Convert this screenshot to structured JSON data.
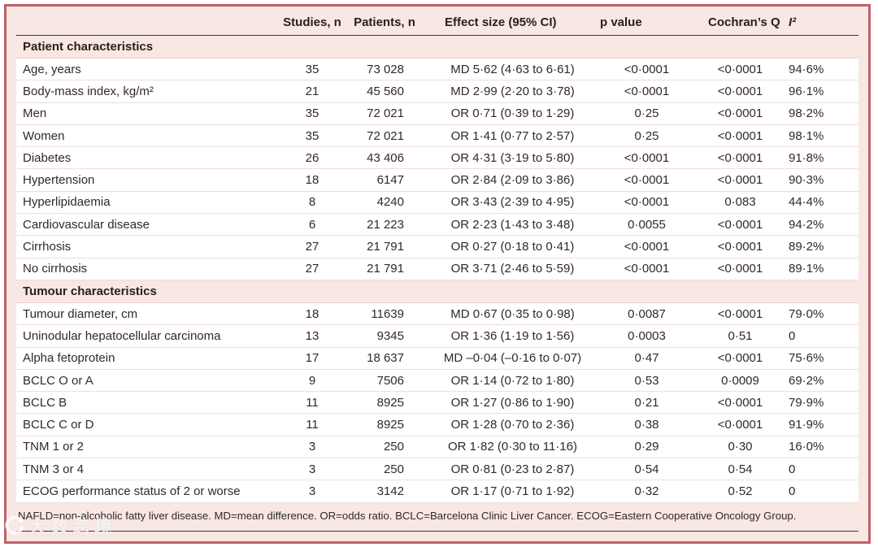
{
  "colors": {
    "frame_border": "#c0606a",
    "panel_background": "#f8e7e3",
    "row_background": "#ffffff",
    "dark_rule": "#3a3631",
    "text": "#2e2a26"
  },
  "header": {
    "columns": [
      "",
      "Studies, n",
      "Patients, n",
      "Effect size (95% CI)",
      "p value",
      "Cochran’s Q",
      "I²"
    ]
  },
  "table": {
    "rows": [
      {
        "type": "section",
        "label": "Patient characteristics"
      },
      {
        "type": "data",
        "label": "Age, years",
        "studies": "35",
        "patients": "73 028",
        "effect": "MD 5·62 (4·63 to 6·61)",
        "p": "<0·0001",
        "q": "<0·0001",
        "i2": "94·6%"
      },
      {
        "type": "data",
        "label": "Body-mass index, kg/m²",
        "studies": "21",
        "patients": "45 560",
        "effect": "MD 2·99 (2·20 to 3·78)",
        "p": "<0·0001",
        "q": "<0·0001",
        "i2": "96·1%"
      },
      {
        "type": "data",
        "label": "Men",
        "studies": "35",
        "patients": "72 021",
        "effect": "OR 0·71 (0·39 to 1·29)",
        "p": "0·25",
        "q": "<0·0001",
        "i2": "98·2%"
      },
      {
        "type": "data",
        "label": "Women",
        "studies": "35",
        "patients": "72 021",
        "effect": "OR 1·41 (0·77 to 2·57)",
        "p": "0·25",
        "q": "<0·0001",
        "i2": "98·1%"
      },
      {
        "type": "data",
        "label": "Diabetes",
        "studies": "26",
        "patients": "43 406",
        "effect": "OR 4·31 (3·19 to 5·80)",
        "p": "<0·0001",
        "q": "<0·0001",
        "i2": "91·8%"
      },
      {
        "type": "data",
        "label": "Hypertension",
        "studies": "18",
        "patients": "6147",
        "effect": "OR 2·84 (2·09 to 3·86)",
        "p": "<0·0001",
        "q": "<0·0001",
        "i2": "90·3%"
      },
      {
        "type": "data",
        "label": "Hyperlipidaemia",
        "studies": "8",
        "patients": "4240",
        "effect": "OR 3·43 (2·39 to 4·95)",
        "p": "<0·0001",
        "q": "0·083",
        "i2": "44·4%"
      },
      {
        "type": "data",
        "label": "Cardiovascular disease",
        "studies": "6",
        "patients": "21 223",
        "effect": "OR 2·23 (1·43 to 3·48)",
        "p": "0·0055",
        "q": "<0·0001",
        "i2": "94·2%"
      },
      {
        "type": "data",
        "label": "Cirrhosis",
        "studies": "27",
        "patients": "21 791",
        "effect": "OR 0·27 (0·18 to 0·41)",
        "p": "<0·0001",
        "q": "<0·0001",
        "i2": "89·2%"
      },
      {
        "type": "data",
        "label": "No cirrhosis",
        "studies": "27",
        "patients": "21 791",
        "effect": "OR 3·71 (2·46 to 5·59)",
        "p": "<0·0001",
        "q": "<0·0001",
        "i2": "89·1%"
      },
      {
        "type": "section",
        "label": "Tumour characteristics"
      },
      {
        "type": "data",
        "label": "Tumour diameter, cm",
        "studies": "18",
        "patients": "11639",
        "effect": "MD 0·67 (0·35 to 0·98)",
        "p": "0·0087",
        "q": "<0·0001",
        "i2": "79·0%"
      },
      {
        "type": "data",
        "label": "Uninodular hepatocellular carcinoma",
        "studies": "13",
        "patients": "9345",
        "effect": "OR 1·36 (1·19 to 1·56)",
        "p": "0·0003",
        "q": "0·51",
        "i2": "0"
      },
      {
        "type": "data",
        "label": "Alpha fetoprotein",
        "studies": "17",
        "patients": "18 637",
        "effect": "MD –0·04 (–0·16 to 0·07)",
        "p": "0·47",
        "q": "<0·0001",
        "i2": "75·6%"
      },
      {
        "type": "data",
        "label": "BCLC O or A",
        "studies": "9",
        "patients": "7506",
        "effect": "OR 1·14 (0·72 to 1·80)",
        "p": "0·53",
        "q": "0·0009",
        "i2": "69·2%"
      },
      {
        "type": "data",
        "label": "BCLC B",
        "studies": "11",
        "patients": "8925",
        "effect": "OR 1·27 (0·86 to 1·90)",
        "p": "0·21",
        "q": "<0·0001",
        "i2": "79·9%"
      },
      {
        "type": "data",
        "label": "BCLC C or D",
        "studies": "11",
        "patients": "8925",
        "effect": "OR 1·28 (0·70 to 2·36)",
        "p": "0·38",
        "q": "<0·0001",
        "i2": "91·9%"
      },
      {
        "type": "data",
        "label": "TNM 1 or 2",
        "studies": "3",
        "patients": "250",
        "effect": "OR 1·82 (0·30 to 11·16)",
        "p": "0·29",
        "q": "0·30",
        "i2": "16·0%"
      },
      {
        "type": "data",
        "label": "TNM 3 or 4",
        "studies": "3",
        "patients": "250",
        "effect": "OR 0·81 (0·23 to 2·87)",
        "p": "0·54",
        "q": "0·54",
        "i2": "0"
      },
      {
        "type": "data",
        "label": "ECOG performance status of 2 or worse",
        "studies": "3",
        "patients": "3142",
        "effect": "OR 1·17 (0·71 to 1·92)",
        "p": "0·32",
        "q": "0·52",
        "i2": "0"
      }
    ]
  },
  "footnote": "NAFLD=non-alcoholic fatty liver disease. MD=mean difference. OR=odds ratio. BCLC=Barcelona Clinic Liver Cancer. ECOG=Eastern Cooperative Oncology Group.",
  "watermark": {
    "text": "大数跨境",
    "logo": "circular-arrow-logo"
  }
}
